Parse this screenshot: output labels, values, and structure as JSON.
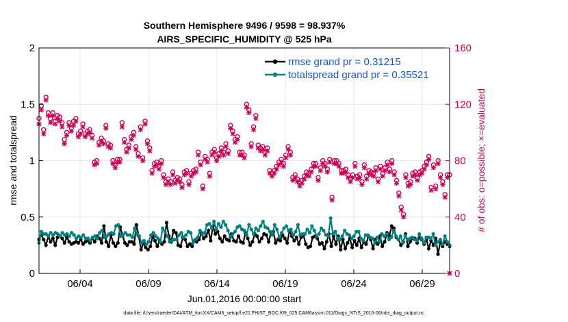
{
  "chart_data": {
    "type": "line",
    "title": "Southern Hemisphere 9496 / 9598 = 98.937%",
    "subtitle": "AIRS_SPECIFIC_HUMIDITY @ 525 hPa",
    "xlabel": "Jun.01,2016 00:00:00 start",
    "ylabel": "rmse and totalspread",
    "y2label": "# of obs: o=possible; ×=evaluated",
    "footnote": "data file: /Users/raeder/DAI/ATM_forcXX/CAM6_setup/f.e21.FHIST_BGC.f09_025.CAM6assim.011/Diags_NTrS_2016-06/obs_diag_output.nc",
    "x_tick_labels": [
      "06/04",
      "06/09",
      "06/14",
      "06/19",
      "06/24",
      "06/29"
    ],
    "x_tick_days": [
      4,
      9,
      14,
      19,
      24,
      29
    ],
    "xlim_days": [
      1,
      31
    ],
    "ylim": [
      0,
      2
    ],
    "y_ticks": [
      "0",
      "0.5",
      "1",
      "1.5",
      "2"
    ],
    "y2lim": [
      0,
      160
    ],
    "y2_ticks": [
      "0",
      "40",
      "80",
      "120",
      "160"
    ],
    "grid": true,
    "legend_position": "top-right",
    "series": [
      {
        "name": "rmse grand pr = 0.31215",
        "color": "#000000",
        "axis": "left",
        "values": [
          0.3,
          0.34,
          0.3,
          0.25,
          0.33,
          0.28,
          0.31,
          0.25,
          0.32,
          0.33,
          0.31,
          0.27,
          0.32,
          0.28,
          0.26,
          0.27,
          0.28,
          0.27,
          0.3,
          0.26,
          0.28,
          0.29,
          0.27,
          0.31,
          0.28,
          0.33,
          0.31,
          0.27,
          0.42,
          0.28,
          0.24,
          0.34,
          0.27,
          0.24,
          0.27,
          0.41,
          0.34,
          0.27,
          0.25,
          0.28,
          0.28,
          0.26,
          0.43,
          0.33,
          0.21,
          0.27,
          0.23,
          0.21,
          0.24,
          0.33,
          0.29,
          0.24,
          0.29,
          0.26,
          0.28,
          0.45,
          0.33,
          0.28,
          0.38,
          0.36,
          0.25,
          0.24,
          0.32,
          0.3,
          0.24,
          0.26,
          0.24,
          0.29,
          0.28,
          0.3,
          0.36,
          0.31,
          0.33,
          0.38,
          0.29,
          0.42,
          0.35,
          0.37,
          0.31,
          0.28,
          0.33,
          0.3,
          0.29,
          0.35,
          0.29,
          0.28,
          0.33,
          0.28,
          0.27,
          0.36,
          0.31,
          0.25,
          0.28,
          0.35,
          0.33,
          0.28,
          0.31,
          0.35,
          0.34,
          0.28,
          0.36,
          0.37,
          0.27,
          0.3,
          0.29,
          0.34,
          0.31,
          0.27,
          0.38,
          0.33,
          0.29,
          0.32,
          0.26,
          0.32,
          0.34,
          0.26,
          0.23,
          0.24,
          0.32,
          0.33,
          0.31,
          0.26,
          0.27,
          0.22,
          0.28,
          0.35,
          0.24,
          0.33,
          0.26,
          0.33,
          0.21,
          0.3,
          0.22,
          0.27,
          0.31,
          0.23,
          0.29,
          0.25,
          0.31,
          0.23,
          0.28,
          0.26,
          0.33,
          0.3,
          0.22,
          0.3,
          0.26,
          0.33,
          0.24,
          0.28,
          0.36,
          0.33,
          0.42,
          0.4,
          0.32,
          0.3,
          0.25,
          0.28,
          0.35,
          0.24,
          0.28,
          0.31,
          0.31,
          0.27,
          0.32,
          0.3,
          0.26,
          0.3,
          0.22,
          0.29,
          0.25,
          0.31,
          0.17,
          0.28,
          0.24,
          0.28,
          0.26,
          0.24
        ]
      },
      {
        "name": "totalspread grand pr = 0.35521",
        "color": "#008080",
        "axis": "left",
        "values": [
          0.27,
          0.37,
          0.35,
          0.35,
          0.33,
          0.36,
          0.34,
          0.36,
          0.35,
          0.33,
          0.36,
          0.34,
          0.35,
          0.33,
          0.36,
          0.34,
          0.31,
          0.33,
          0.32,
          0.34,
          0.31,
          0.31,
          0.29,
          0.32,
          0.33,
          0.31,
          0.36,
          0.38,
          0.32,
          0.33,
          0.35,
          0.36,
          0.35,
          0.42,
          0.43,
          0.33,
          0.34,
          0.36,
          0.34,
          0.34,
          0.32,
          0.4,
          0.35,
          0.33,
          0.27,
          0.29,
          0.26,
          0.28,
          0.34,
          0.36,
          0.33,
          0.31,
          0.28,
          0.4,
          0.37,
          0.33,
          0.28,
          0.29,
          0.3,
          0.3,
          0.34,
          0.36,
          0.32,
          0.34,
          0.37,
          0.36,
          0.27,
          0.3,
          0.32,
          0.38,
          0.35,
          0.36,
          0.43,
          0.44,
          0.4,
          0.46,
          0.39,
          0.44,
          0.41,
          0.46,
          0.43,
          0.38,
          0.32,
          0.35,
          0.37,
          0.41,
          0.42,
          0.39,
          0.38,
          0.34,
          0.43,
          0.39,
          0.35,
          0.4,
          0.38,
          0.42,
          0.46,
          0.41,
          0.4,
          0.37,
          0.34,
          0.43,
          0.39,
          0.32,
          0.36,
          0.4,
          0.42,
          0.38,
          0.39,
          0.34,
          0.37,
          0.43,
          0.34,
          0.35,
          0.35,
          0.39,
          0.36,
          0.42,
          0.38,
          0.33,
          0.35,
          0.4,
          0.38,
          0.34,
          0.33,
          0.49,
          0.35,
          0.37,
          0.31,
          0.3,
          0.33,
          0.38,
          0.35,
          0.34,
          0.31,
          0.33,
          0.37,
          0.37,
          0.31,
          0.29,
          0.34,
          0.34,
          0.32,
          0.31,
          0.27,
          0.32,
          0.28,
          0.35,
          0.33,
          0.35,
          0.3,
          0.32,
          0.38,
          0.33,
          0.3,
          0.33,
          0.27,
          0.34,
          0.3,
          0.31,
          0.32,
          0.3,
          0.29,
          0.35,
          0.31,
          0.27,
          0.32,
          0.32,
          0.31,
          0.35,
          0.25,
          0.28,
          0.3,
          0.26,
          0.33,
          0.28,
          0.25
        ]
      },
      {
        "name": "obs possible",
        "color": "#cc0055",
        "axis": "right",
        "marker": "o",
        "values": [
          110,
          119,
          102,
          125,
          114,
          110,
          114,
          108,
          112,
          111,
          107,
          95,
          100,
          107,
          103,
          108,
          110,
          99,
          101,
          106,
          99,
          101,
          102,
          98,
          79,
          80,
          93,
          96,
          94,
          105,
          92,
          91,
          80,
          77,
          81,
          81,
          107,
          95,
          88,
          91,
          97,
          100,
          90,
          85,
          104,
          82,
          108,
          94,
          89,
          73,
          78,
          79,
          76,
          80,
          70,
          65,
          67,
          65,
          72,
          66,
          68,
          67,
          63,
          72,
          73,
          65,
          71,
          73,
          74,
          86,
          79,
          62,
          83,
          81,
          71,
          86,
          88,
          82,
          85,
          89,
          86,
          92,
          87,
          105,
          101,
          95,
          97,
          86,
          86,
          84,
          120,
          116,
          92,
          104,
          112,
          91,
          89,
          90,
          86,
          89,
          73,
          71,
          73,
          76,
          79,
          81,
          78,
          84,
          90,
          86,
          68,
          70,
          67,
          64,
          66,
          69,
          72,
          71,
          74,
          78,
          78,
          68,
          75,
          80,
          78,
          74,
          81,
          54,
          80,
          80,
          78,
          73,
          73,
          74,
          70,
          67,
          70,
          78,
          69,
          70,
          65,
          77,
          69,
          73,
          72,
          71,
          75,
          67,
          76,
          71,
          75,
          79,
          74,
          80,
          72,
          66,
          57,
          47,
          42,
          70,
          64,
          65,
          71,
          72,
          68,
          72,
          73,
          76,
          79,
          83,
          61,
          77,
          62,
          80,
          70,
          65,
          56,
          70,
          70
        ]
      },
      {
        "name": "obs evaluated",
        "color": "#cc0055",
        "axis": "right",
        "marker": "x",
        "values": [
          106,
          116,
          99,
          123,
          112,
          107,
          112,
          106,
          110,
          108,
          104,
          92,
          98,
          105,
          101,
          105,
          108,
          97,
          99,
          104,
          97,
          99,
          100,
          96,
          77,
          78,
          91,
          94,
          92,
          103,
          90,
          89,
          78,
          75,
          79,
          79,
          104,
          93,
          86,
          89,
          95,
          98,
          88,
          83,
          102,
          80,
          106,
          92,
          87,
          71,
          76,
          77,
          74,
          78,
          68,
          63,
          65,
          63,
          70,
          64,
          66,
          65,
          61,
          70,
          71,
          63,
          69,
          71,
          72,
          84,
          77,
          60,
          81,
          79,
          69,
          84,
          86,
          80,
          83,
          87,
          84,
          90,
          85,
          103,
          99,
          93,
          95,
          84,
          84,
          82,
          118,
          114,
          90,
          102,
          110,
          89,
          87,
          88,
          84,
          87,
          71,
          69,
          71,
          74,
          77,
          79,
          76,
          82,
          88,
          84,
          66,
          68,
          65,
          62,
          64,
          67,
          70,
          69,
          72,
          76,
          76,
          66,
          73,
          78,
          76,
          72,
          79,
          52,
          78,
          78,
          76,
          71,
          71,
          72,
          68,
          65,
          68,
          76,
          67,
          68,
          63,
          75,
          67,
          71,
          70,
          69,
          73,
          65,
          74,
          69,
          73,
          77,
          72,
          78,
          70,
          64,
          55,
          45,
          40,
          68,
          62,
          63,
          69,
          70,
          66,
          70,
          71,
          74,
          77,
          81,
          59,
          75,
          60,
          78,
          68,
          63,
          54,
          68,
          0
        ]
      }
    ]
  }
}
